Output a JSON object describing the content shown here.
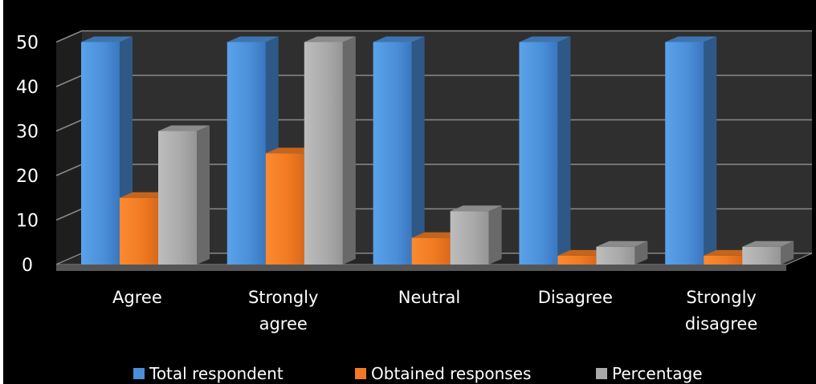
{
  "chart_data": {
    "type": "bar",
    "title": "",
    "xlabel": "",
    "ylabel": "",
    "ylim": [
      0,
      50
    ],
    "yticks": [
      "0",
      "10",
      "20",
      "30",
      "40",
      "50"
    ],
    "categories": [
      [
        "Agree"
      ],
      [
        "Strongly",
        "agree"
      ],
      [
        "Neutral"
      ],
      [
        "Disagree"
      ],
      [
        "Strongly",
        "disagree"
      ]
    ],
    "series": [
      {
        "name": "Total respondent",
        "values": [
          50,
          50,
          50,
          50,
          50
        ],
        "color": "#4a8fd8"
      },
      {
        "name": "Obtained responses",
        "values": [
          15,
          25,
          6,
          2,
          2
        ],
        "color": "#f07a22"
      },
      {
        "name": "Percentage",
        "values": [
          30,
          50,
          12,
          4,
          4
        ],
        "color": "#a9a9a9"
      }
    ],
    "grid": true,
    "legend_position": "bottom",
    "style": "3d",
    "background": "#000000"
  }
}
